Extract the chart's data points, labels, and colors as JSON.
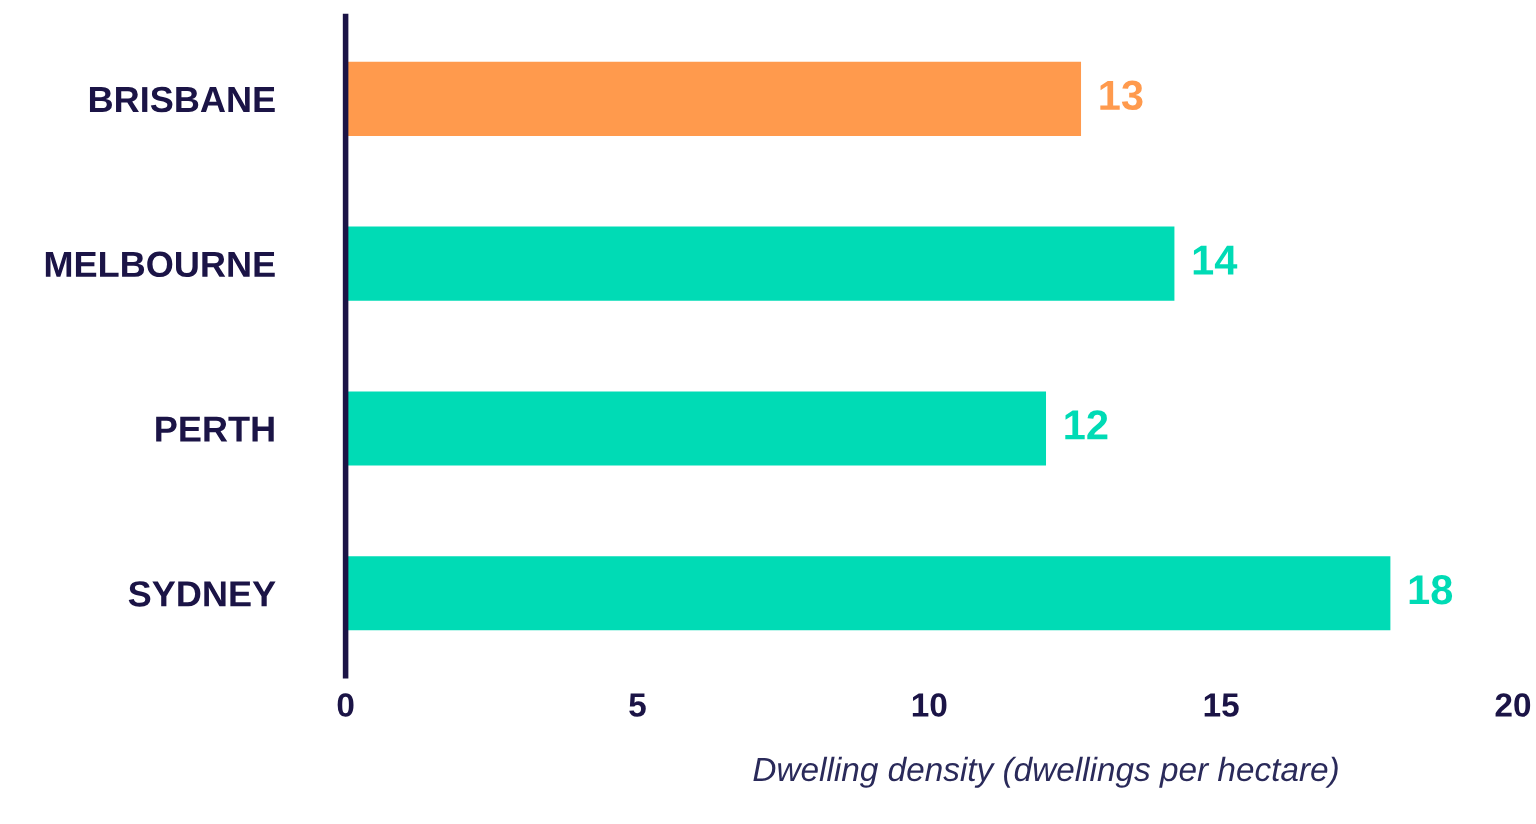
{
  "chart_data": {
    "type": "bar",
    "orientation": "horizontal",
    "categories": [
      "BRISBANE",
      "MELBOURNE",
      "PERTH",
      "SYDNEY"
    ],
    "values": [
      12.6,
      14.2,
      12.0,
      17.9
    ],
    "colors": [
      "#ff9a4d",
      "#00dbb5",
      "#00dbb5",
      "#00dbb5"
    ],
    "value_labels": [
      "13",
      "14",
      "12",
      "18"
    ],
    "xlabel": "Dwelling density (dwellings per hectare)",
    "xlim": [
      0,
      20
    ],
    "xticks": [
      0,
      5,
      10,
      15,
      20
    ],
    "grid": false,
    "legend": false
  }
}
